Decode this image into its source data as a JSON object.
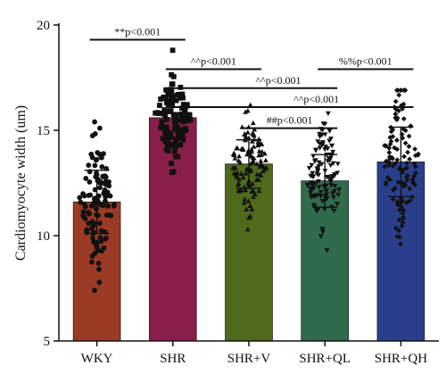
{
  "chart_data": {
    "type": "bar",
    "title": "",
    "xlabel": "",
    "ylabel": "Cardiomyocyte width (um)",
    "ylim": [
      5,
      20
    ],
    "yticks": [
      5,
      10,
      15,
      20
    ],
    "grid": false,
    "legend": "none",
    "categories": [
      "WKY",
      "SHR",
      "SHR+V",
      "SHR+QL",
      "SHR+QH"
    ],
    "values": [
      11.6,
      15.6,
      13.4,
      12.6,
      13.5
    ],
    "error_sd": [
      1.5,
      1.0,
      1.15,
      1.25,
      1.65
    ],
    "point_ranges": [
      [
        7.4,
        15.4
      ],
      [
        13.0,
        18.8
      ],
      [
        10.3,
        16.2
      ],
      [
        9.3,
        15.8
      ],
      [
        9.6,
        16.9
      ]
    ],
    "colors": [
      "#9b3a25",
      "#8a1e4a",
      "#4f6a1a",
      "#2f6b4c",
      "#2a3f8c"
    ],
    "significance": [
      {
        "label": "**p<0.001",
        "from": 0,
        "to": 1,
        "y": 19.3
      },
      {
        "label": "^^p<0.001",
        "from": 1,
        "to": 2,
        "y": 17.9
      },
      {
        "label": "%%p<0.001",
        "from": 3,
        "to": 4,
        "y": 17.9
      },
      {
        "label": "^^p<0.001",
        "from": 1,
        "to": 3,
        "y": 17.0
      },
      {
        "label": "^^p<0.001",
        "from": 1,
        "to": 4,
        "y": 16.1
      },
      {
        "label": "##p<0.001",
        "from": 2,
        "to": 3,
        "y": 15.1
      }
    ]
  }
}
